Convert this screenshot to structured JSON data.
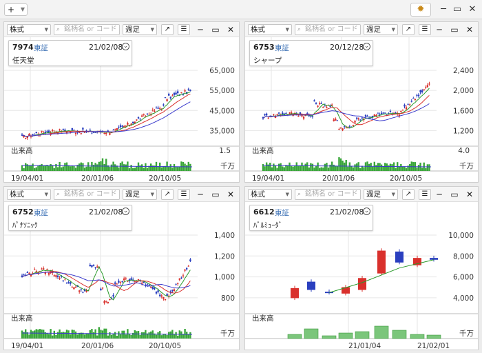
{
  "toolbar": {
    "add_label": "+",
    "gear_icon": "gear-icon"
  },
  "colors": {
    "up": "#d9302c",
    "down": "#2a3fbf",
    "ma_short": "#2a9a2a",
    "ma_mid": "#d9302c",
    "ma_long": "#3a3acc",
    "volume": "#3aa63a"
  },
  "panels": [
    {
      "market": "株式",
      "search_placeholder": "銘柄名 or コード",
      "period": "週足",
      "code": "7974",
      "exchange": "東証",
      "date": "21/02/08",
      "name": "任天堂",
      "volume_label": "出来高",
      "volume_unit": "千万",
      "volume_max": "1.5",
      "y_ticks": [
        "65,000",
        "55,000",
        "45,000",
        "35,000"
      ],
      "x_ticks": [
        "19/04/01",
        "20/01/06",
        "20/10/05"
      ]
    },
    {
      "market": "株式",
      "search_placeholder": "銘柄名 or コード",
      "period": "週足",
      "code": "6753",
      "exchange": "東証",
      "date": "20/12/28",
      "name": "シャープ",
      "volume_label": "出来高",
      "volume_unit": "千万",
      "volume_max": "4.0",
      "y_ticks": [
        "2,400",
        "2,000",
        "1,600",
        "1,200"
      ],
      "x_ticks": [
        "19/04/01",
        "20/01/06",
        "20/10/05"
      ]
    },
    {
      "market": "株式",
      "search_placeholder": "銘柄名 or コード",
      "period": "週足",
      "code": "6752",
      "exchange": "東証",
      "date": "21/02/08",
      "name": "ﾊﾟﾅｿﾆｯｸ",
      "volume_label": "出来高",
      "volume_unit": "千万",
      "volume_max": "",
      "y_ticks": [
        "1,400",
        "1,200",
        "1,000",
        "800"
      ],
      "x_ticks": [
        "19/04/01",
        "20/01/06",
        "20/10/05"
      ]
    },
    {
      "market": "株式",
      "search_placeholder": "銘柄名 or コード",
      "period": "週足",
      "code": "6612",
      "exchange": "東証",
      "date": "21/02/08",
      "name": "ﾊﾞﾙﾐｭｰﾀﾞ",
      "volume_label": "出来高",
      "volume_unit": "千万",
      "volume_max": "",
      "y_ticks": [
        "10,000",
        "8,000",
        "6,000",
        "4,000"
      ],
      "x_ticks": [
        "21/01/04",
        "21/02/01"
      ]
    }
  ]
}
